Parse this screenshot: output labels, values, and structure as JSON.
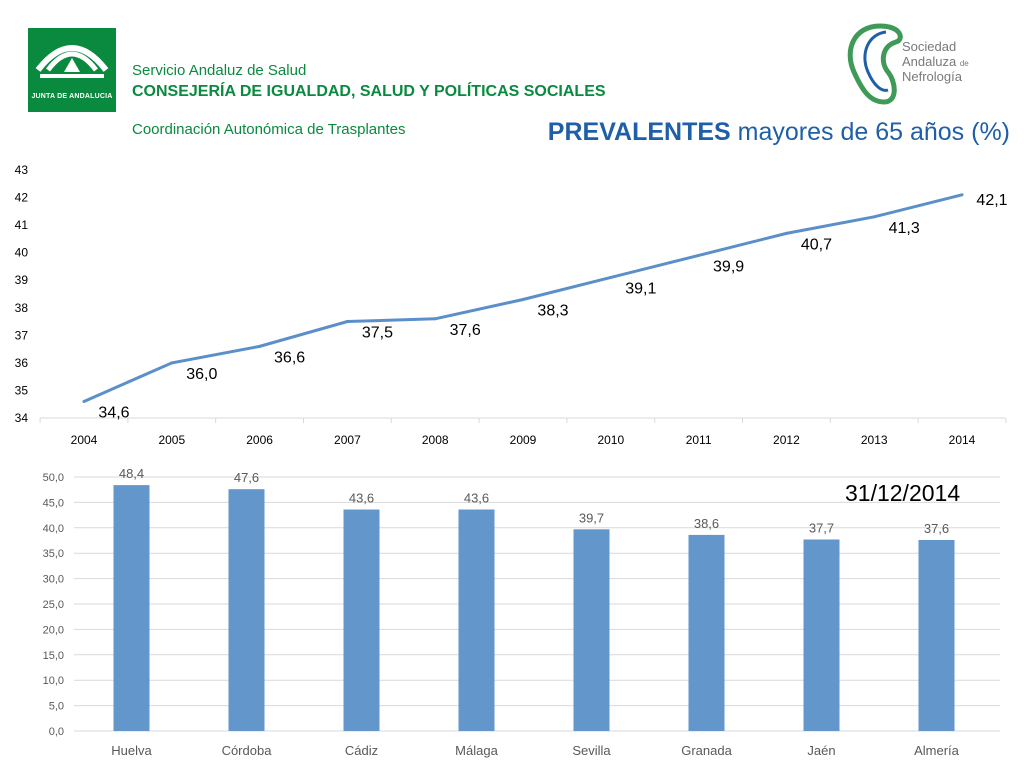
{
  "header": {
    "junta_logo_text": "JUNTA DE ANDALUCIA",
    "org_line1": "Servicio Andaluz de Salud",
    "org_line2": "CONSEJERÍA DE IGUALDAD, SALUD Y POLÍTICAS SOCIALES",
    "org_line3": "Coordinación Autonómica de Trasplantes",
    "title_bold": "PREVALENTES",
    "title_rest": " mayores de 65 años (%)",
    "sen_line1": "Sociedad",
    "sen_line2": "Andaluza",
    "sen_line2_suffix": "de",
    "sen_line3": "Nefrología"
  },
  "date_label": "31/12/2014",
  "colors": {
    "line": "#5b8fc9",
    "bar": "#6397cb",
    "brand_green": "#0a8a3e",
    "title_blue": "#1f5fa8"
  },
  "chart_data": [
    {
      "type": "line",
      "x": [
        "2004",
        "2005",
        "2006",
        "2007",
        "2008",
        "2009",
        "2010",
        "2011",
        "2012",
        "2013",
        "2014"
      ],
      "values": [
        34.6,
        36.0,
        36.6,
        37.5,
        37.6,
        38.3,
        39.1,
        39.9,
        40.7,
        41.3,
        42.1
      ],
      "data_labels": [
        "34,6",
        "36,0",
        "36,6",
        "37,5",
        "37,6",
        "38,3",
        "39,1",
        "39,9",
        "40,7",
        "41,3",
        "42,1"
      ],
      "ylim": [
        34,
        43
      ],
      "yticks": [
        "34",
        "35",
        "36",
        "37",
        "38",
        "39",
        "40",
        "41",
        "42",
        "43"
      ],
      "grid": false,
      "title": "",
      "xlabel": "",
      "ylabel": ""
    },
    {
      "type": "bar",
      "categories": [
        "Huelva",
        "Córdoba",
        "Cádiz",
        "Málaga",
        "Sevilla",
        "Granada",
        "Jaén",
        "Almería"
      ],
      "values": [
        48.4,
        47.6,
        43.6,
        43.6,
        39.7,
        38.6,
        37.7,
        37.6
      ],
      "data_labels": [
        "48,4",
        "47,6",
        "43,6",
        "43,6",
        "39,7",
        "38,6",
        "37,7",
        "37,6"
      ],
      "ylim": [
        0,
        50
      ],
      "yticks": [
        "0,0",
        "5,0",
        "10,0",
        "15,0",
        "20,0",
        "25,0",
        "30,0",
        "35,0",
        "40,0",
        "45,0",
        "50,0"
      ],
      "grid": true,
      "title": "",
      "xlabel": "",
      "ylabel": ""
    }
  ]
}
